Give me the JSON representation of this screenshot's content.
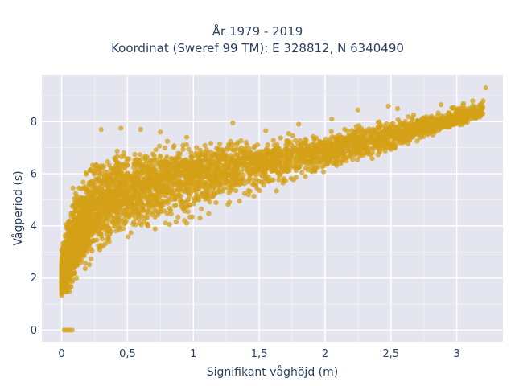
{
  "chart_data": {
    "type": "scatter",
    "title_lines": [
      "År 1979 - 2019",
      "Koordinat (Sweref 99 TM): E 328812, N 6340490"
    ],
    "xlabel": "Signifikant våghöjd (m)",
    "ylabel": "Vågperiod (s)",
    "xlim": [
      -0.15,
      3.35
    ],
    "ylim": [
      -0.45,
      9.8
    ],
    "xticks": [
      0,
      0.5,
      1,
      1.5,
      2,
      2.5,
      3
    ],
    "xtick_labels": [
      "0",
      "0,5",
      "1",
      "1,5",
      "2",
      "2,5",
      "3"
    ],
    "yticks": [
      0,
      2,
      4,
      6,
      8
    ],
    "ytick_labels": [
      "0",
      "2",
      "4",
      "6",
      "8"
    ],
    "grid": true,
    "marker_color": "#D4A017",
    "marker_opacity": 0.75,
    "series": [
      {
        "points_note": "",
        "outlier_points": [
          [
            0.02,
            0.0
          ],
          [
            0.04,
            0.0
          ],
          [
            0.06,
            0.0
          ],
          [
            0.08,
            0.0
          ],
          [
            3.22,
            9.3
          ],
          [
            3.2,
            8.8
          ],
          [
            3.18,
            8.6
          ],
          [
            3.12,
            8.8
          ],
          [
            3.05,
            8.7
          ],
          [
            2.88,
            8.65
          ],
          [
            2.97,
            8.5
          ],
          [
            2.55,
            8.5
          ],
          [
            2.48,
            8.6
          ],
          [
            2.25,
            8.45
          ],
          [
            0.3,
            7.7
          ],
          [
            0.45,
            7.75
          ],
          [
            0.6,
            7.7
          ],
          [
            0.75,
            7.6
          ],
          [
            0.95,
            7.4
          ],
          [
            1.3,
            7.95
          ],
          [
            1.55,
            7.65
          ],
          [
            1.8,
            7.9
          ],
          [
            2.05,
            8.1
          ],
          [
            1.05,
            4.3
          ],
          [
            1.35,
            4.95
          ],
          [
            1.85,
            5.9
          ],
          [
            0.95,
            4.1
          ]
        ],
        "envelope": {
          "x": [
            0.0,
            0.05,
            0.1,
            0.15,
            0.2,
            0.3,
            0.4,
            0.5,
            0.6,
            0.8,
            1.0,
            1.25,
            1.5,
            1.75,
            2.0,
            2.25,
            2.5,
            2.75,
            3.0,
            3.2
          ],
          "y_min": [
            1.2,
            1.1,
            1.3,
            1.7,
            2.0,
            2.5,
            2.8,
            3.0,
            3.3,
            3.6,
            4.1,
            4.6,
            5.0,
            5.5,
            5.9,
            6.3,
            6.7,
            7.2,
            7.7,
            8.1
          ],
          "y_max": [
            3.2,
            4.8,
            5.8,
            6.4,
            6.8,
            7.0,
            7.1,
            7.2,
            7.2,
            7.3,
            7.3,
            7.5,
            7.6,
            7.7,
            7.8,
            8.0,
            8.2,
            8.4,
            8.7,
            8.9
          ],
          "y_center": [
            2.0,
            2.6,
            3.4,
            3.9,
            4.3,
            4.9,
            5.2,
            5.4,
            5.6,
            5.8,
            6.0,
            6.2,
            6.4,
            6.6,
            6.9,
            7.2,
            7.5,
            7.8,
            8.1,
            8.4
          ]
        }
      }
    ]
  }
}
